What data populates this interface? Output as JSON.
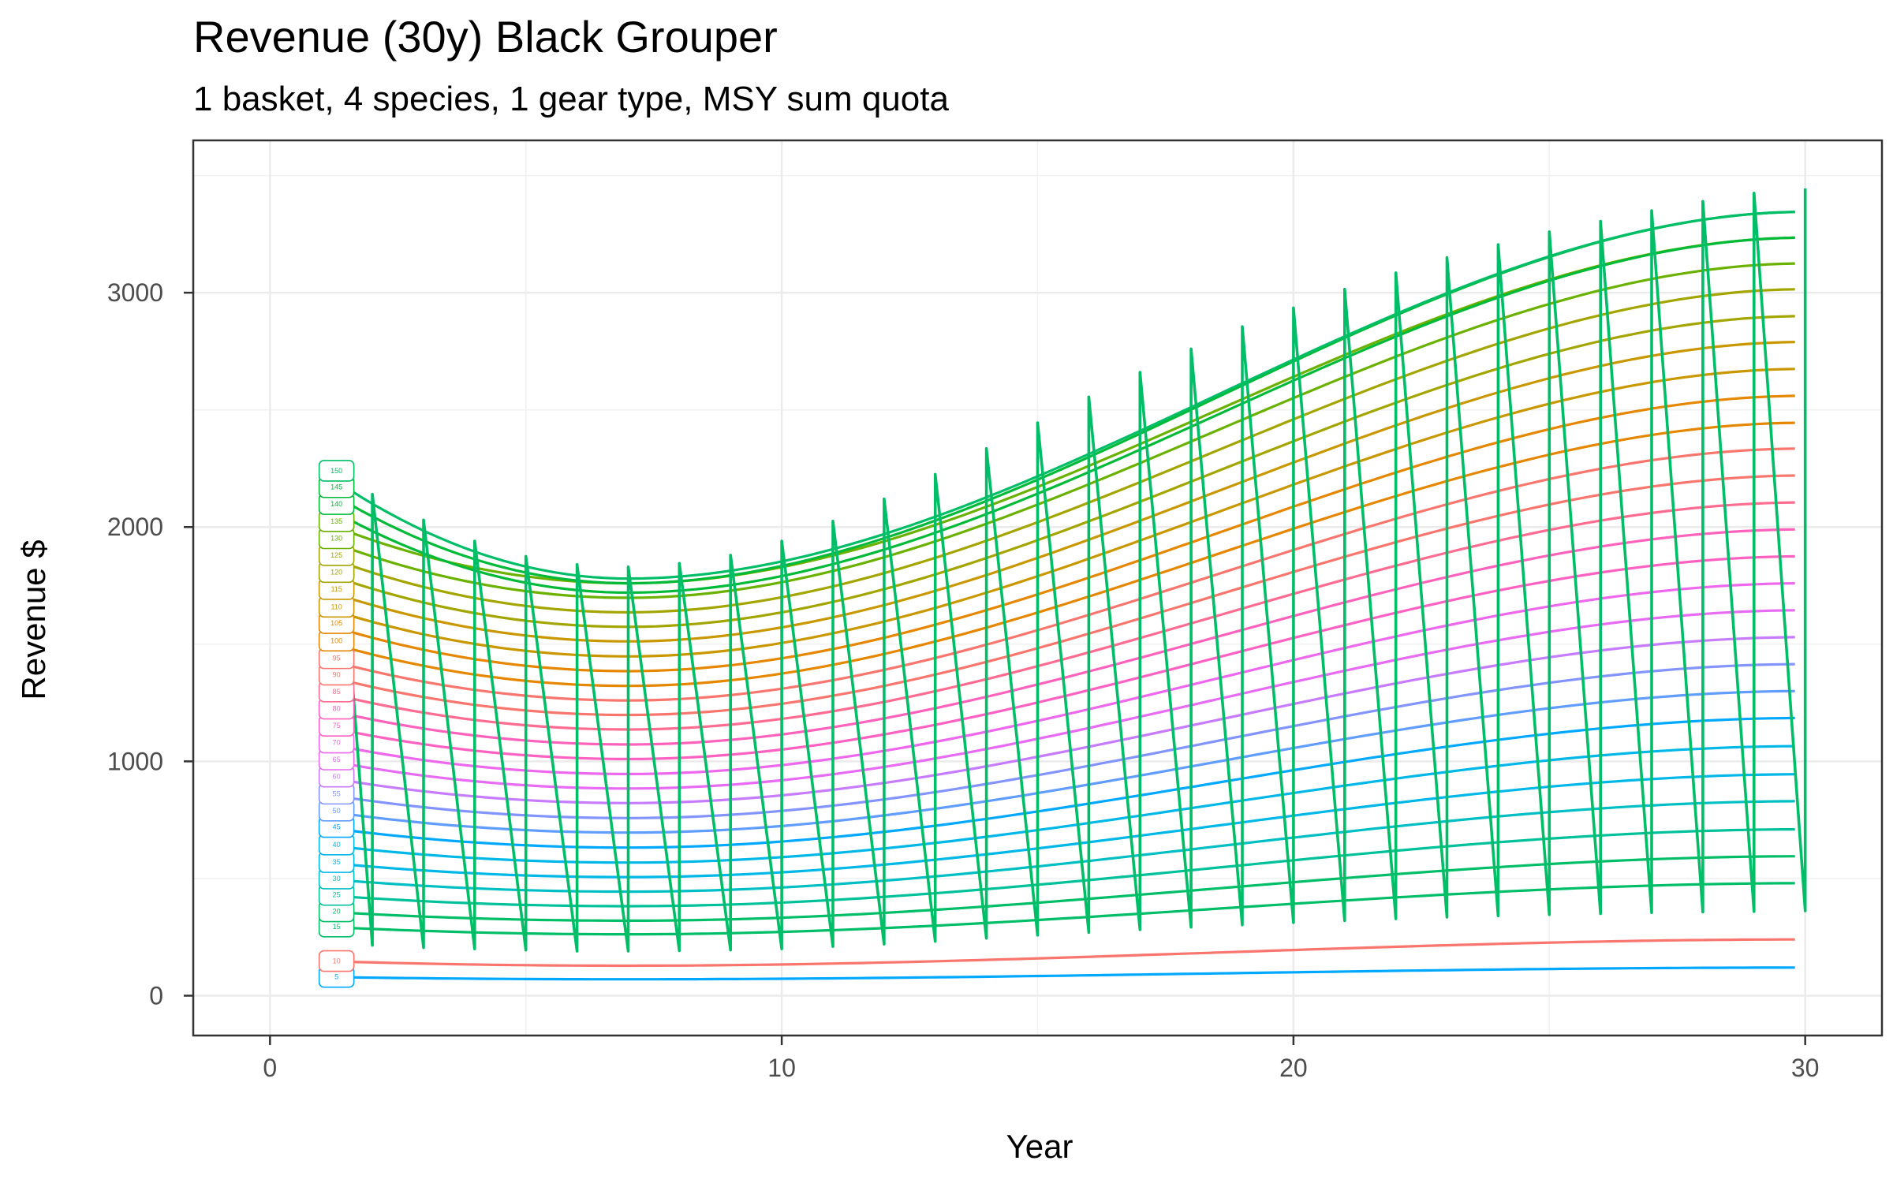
{
  "chart_data": {
    "type": "line",
    "title": "Revenue (30y) Black Grouper",
    "subtitle": "1 basket, 4 species, 1 gear type, MSY sum quota",
    "xlabel": "Year",
    "ylabel": "Revenue $",
    "xlim": [
      -1.5,
      31.5
    ],
    "ylim": [
      -170,
      3650
    ],
    "xticks": [
      0,
      10,
      20,
      30
    ],
    "yticks": [
      0,
      1000,
      2000,
      3000
    ],
    "grid": true,
    "legend": "none",
    "label_x": 1.3,
    "series": [
      {
        "label": "5",
        "color": "#00A9FF",
        "y1": 80,
        "ymin": 70,
        "y30": 120
      },
      {
        "label": "10",
        "color": "#F8766D",
        "y1": 148,
        "ymin": 128,
        "y30": 240
      },
      {
        "label": "15",
        "color": "#00BE67",
        "y1": 295,
        "ymin": 262,
        "y30": 480
      },
      {
        "label": "20",
        "color": "#00BE67",
        "y1": 360,
        "ymin": 320,
        "y30": 595
      },
      {
        "label": "25",
        "color": "#00C19A",
        "y1": 430,
        "ymin": 382,
        "y30": 710
      },
      {
        "label": "30",
        "color": "#00BFC4",
        "y1": 500,
        "ymin": 444,
        "y30": 830
      },
      {
        "label": "35",
        "color": "#00B8E7",
        "y1": 570,
        "ymin": 506,
        "y30": 945
      },
      {
        "label": "40",
        "color": "#00B8E7",
        "y1": 645,
        "ymin": 568,
        "y30": 1065
      },
      {
        "label": "45",
        "color": "#00A9FF",
        "y1": 720,
        "ymin": 632,
        "y30": 1185
      },
      {
        "label": "50",
        "color": "#619CFF",
        "y1": 790,
        "ymin": 696,
        "y30": 1300
      },
      {
        "label": "55",
        "color": "#8494FF",
        "y1": 862,
        "ymin": 758,
        "y30": 1415
      },
      {
        "label": "60",
        "color": "#C77CFF",
        "y1": 935,
        "ymin": 822,
        "y30": 1530
      },
      {
        "label": "65",
        "color": "#E76BF3",
        "y1": 1008,
        "ymin": 884,
        "y30": 1645
      },
      {
        "label": "70",
        "color": "#ED68ED",
        "y1": 1080,
        "ymin": 946,
        "y30": 1760
      },
      {
        "label": "75",
        "color": "#FF61C3",
        "y1": 1152,
        "ymin": 1010,
        "y30": 1875
      },
      {
        "label": "80",
        "color": "#FF62BC",
        "y1": 1225,
        "ymin": 1072,
        "y30": 1990
      },
      {
        "label": "85",
        "color": "#FF6C91",
        "y1": 1298,
        "ymin": 1136,
        "y30": 2105
      },
      {
        "label": "90",
        "color": "#F8766D",
        "y1": 1370,
        "ymin": 1198,
        "y30": 2220
      },
      {
        "label": "95",
        "color": "#F8766D",
        "y1": 1440,
        "ymin": 1260,
        "y30": 2335
      },
      {
        "label": "100",
        "color": "#E58700",
        "y1": 1515,
        "ymin": 1322,
        "y30": 2445
      },
      {
        "label": "105",
        "color": "#E58700",
        "y1": 1590,
        "ymin": 1385,
        "y30": 2560
      },
      {
        "label": "110",
        "color": "#C99800",
        "y1": 1660,
        "ymin": 1448,
        "y30": 2675
      },
      {
        "label": "115",
        "color": "#C99800",
        "y1": 1735,
        "ymin": 1512,
        "y30": 2790
      },
      {
        "label": "120",
        "color": "#A3A500",
        "y1": 1808,
        "ymin": 1574,
        "y30": 2900
      },
      {
        "label": "125",
        "color": "#A3A500",
        "y1": 1880,
        "ymin": 1636,
        "y30": 3015
      },
      {
        "label": "130",
        "color": "#6BB100",
        "y1": 1952,
        "ymin": 1698,
        "y30": 3125
      },
      {
        "label": "135",
        "color": "#6BB100",
        "y1": 2025,
        "ymin": 1760,
        "y30": 3235
      },
      {
        "label": "140",
        "color": "#00BA38",
        "y1": 2098,
        "ymin": 1720,
        "y30": 3235
      },
      {
        "label": "145",
        "color": "#00BA38",
        "y1": 2170,
        "ymin": 1760,
        "y30": 3345
      },
      {
        "label": "150",
        "color": "#00BE67",
        "y1": 2240,
        "ymin": 1780,
        "y30": 3345
      }
    ],
    "zigzag": {
      "color": "#00BE67",
      "top": [
        [
          1.3,
          2230
        ],
        [
          2,
          2140
        ],
        [
          3,
          2030
        ],
        [
          4,
          1940
        ],
        [
          5,
          1875
        ],
        [
          6,
          1840
        ],
        [
          7,
          1830
        ],
        [
          8,
          1845
        ],
        [
          9,
          1880
        ],
        [
          10,
          1940
        ],
        [
          11,
          2025
        ],
        [
          12,
          2120
        ],
        [
          13,
          2225
        ],
        [
          14,
          2335
        ],
        [
          15,
          2445
        ],
        [
          16,
          2555
        ],
        [
          17,
          2660
        ],
        [
          18,
          2760
        ],
        [
          19,
          2855
        ],
        [
          20,
          2935
        ],
        [
          21,
          3015
        ],
        [
          22,
          3085
        ],
        [
          23,
          3150
        ],
        [
          24,
          3205
        ],
        [
          25,
          3260
        ],
        [
          26,
          3305
        ],
        [
          27,
          3350
        ],
        [
          28,
          3390
        ],
        [
          29,
          3425
        ],
        [
          30,
          3445
        ]
      ],
      "bottom": [
        [
          2,
          215
        ],
        [
          3,
          205
        ],
        [
          4,
          200
        ],
        [
          5,
          195
        ],
        [
          6,
          190
        ],
        [
          7,
          190
        ],
        [
          8,
          192
        ],
        [
          9,
          195
        ],
        [
          10,
          200
        ],
        [
          11,
          210
        ],
        [
          12,
          220
        ],
        [
          13,
          232
        ],
        [
          14,
          245
        ],
        [
          15,
          258
        ],
        [
          16,
          270
        ],
        [
          17,
          282
        ],
        [
          18,
          292
        ],
        [
          19,
          302
        ],
        [
          20,
          312
        ],
        [
          21,
          320
        ],
        [
          22,
          328
        ],
        [
          23,
          335
        ],
        [
          24,
          341
        ],
        [
          25,
          346
        ],
        [
          26,
          350
        ],
        [
          27,
          354
        ],
        [
          28,
          357
        ],
        [
          29,
          359
        ],
        [
          30,
          362
        ]
      ]
    }
  }
}
